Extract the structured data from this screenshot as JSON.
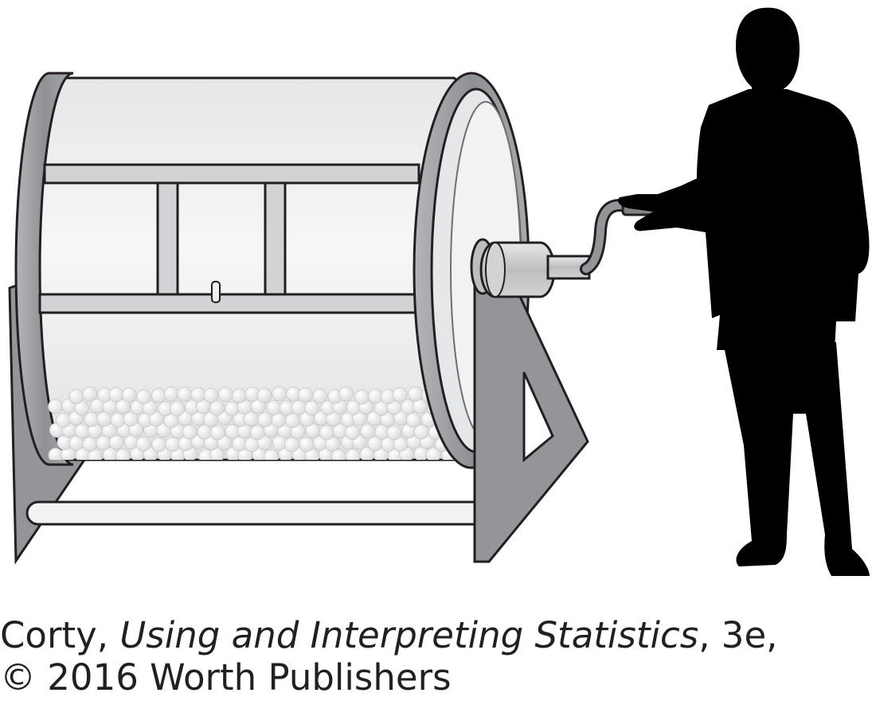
{
  "caption": {
    "line1_author": "Corty, ",
    "line1_title": "Using and Interpreting Statistics",
    "line1_edition": ", 3e,",
    "line2": "© 2016 Worth Publishers"
  },
  "colors": {
    "frame": "#939598",
    "frame_dark": "#6d6e71",
    "drum_light": "#f1f2f2",
    "drum_mid": "#d1d3d4",
    "silhouette": "#000000",
    "outline": "#231f20"
  }
}
